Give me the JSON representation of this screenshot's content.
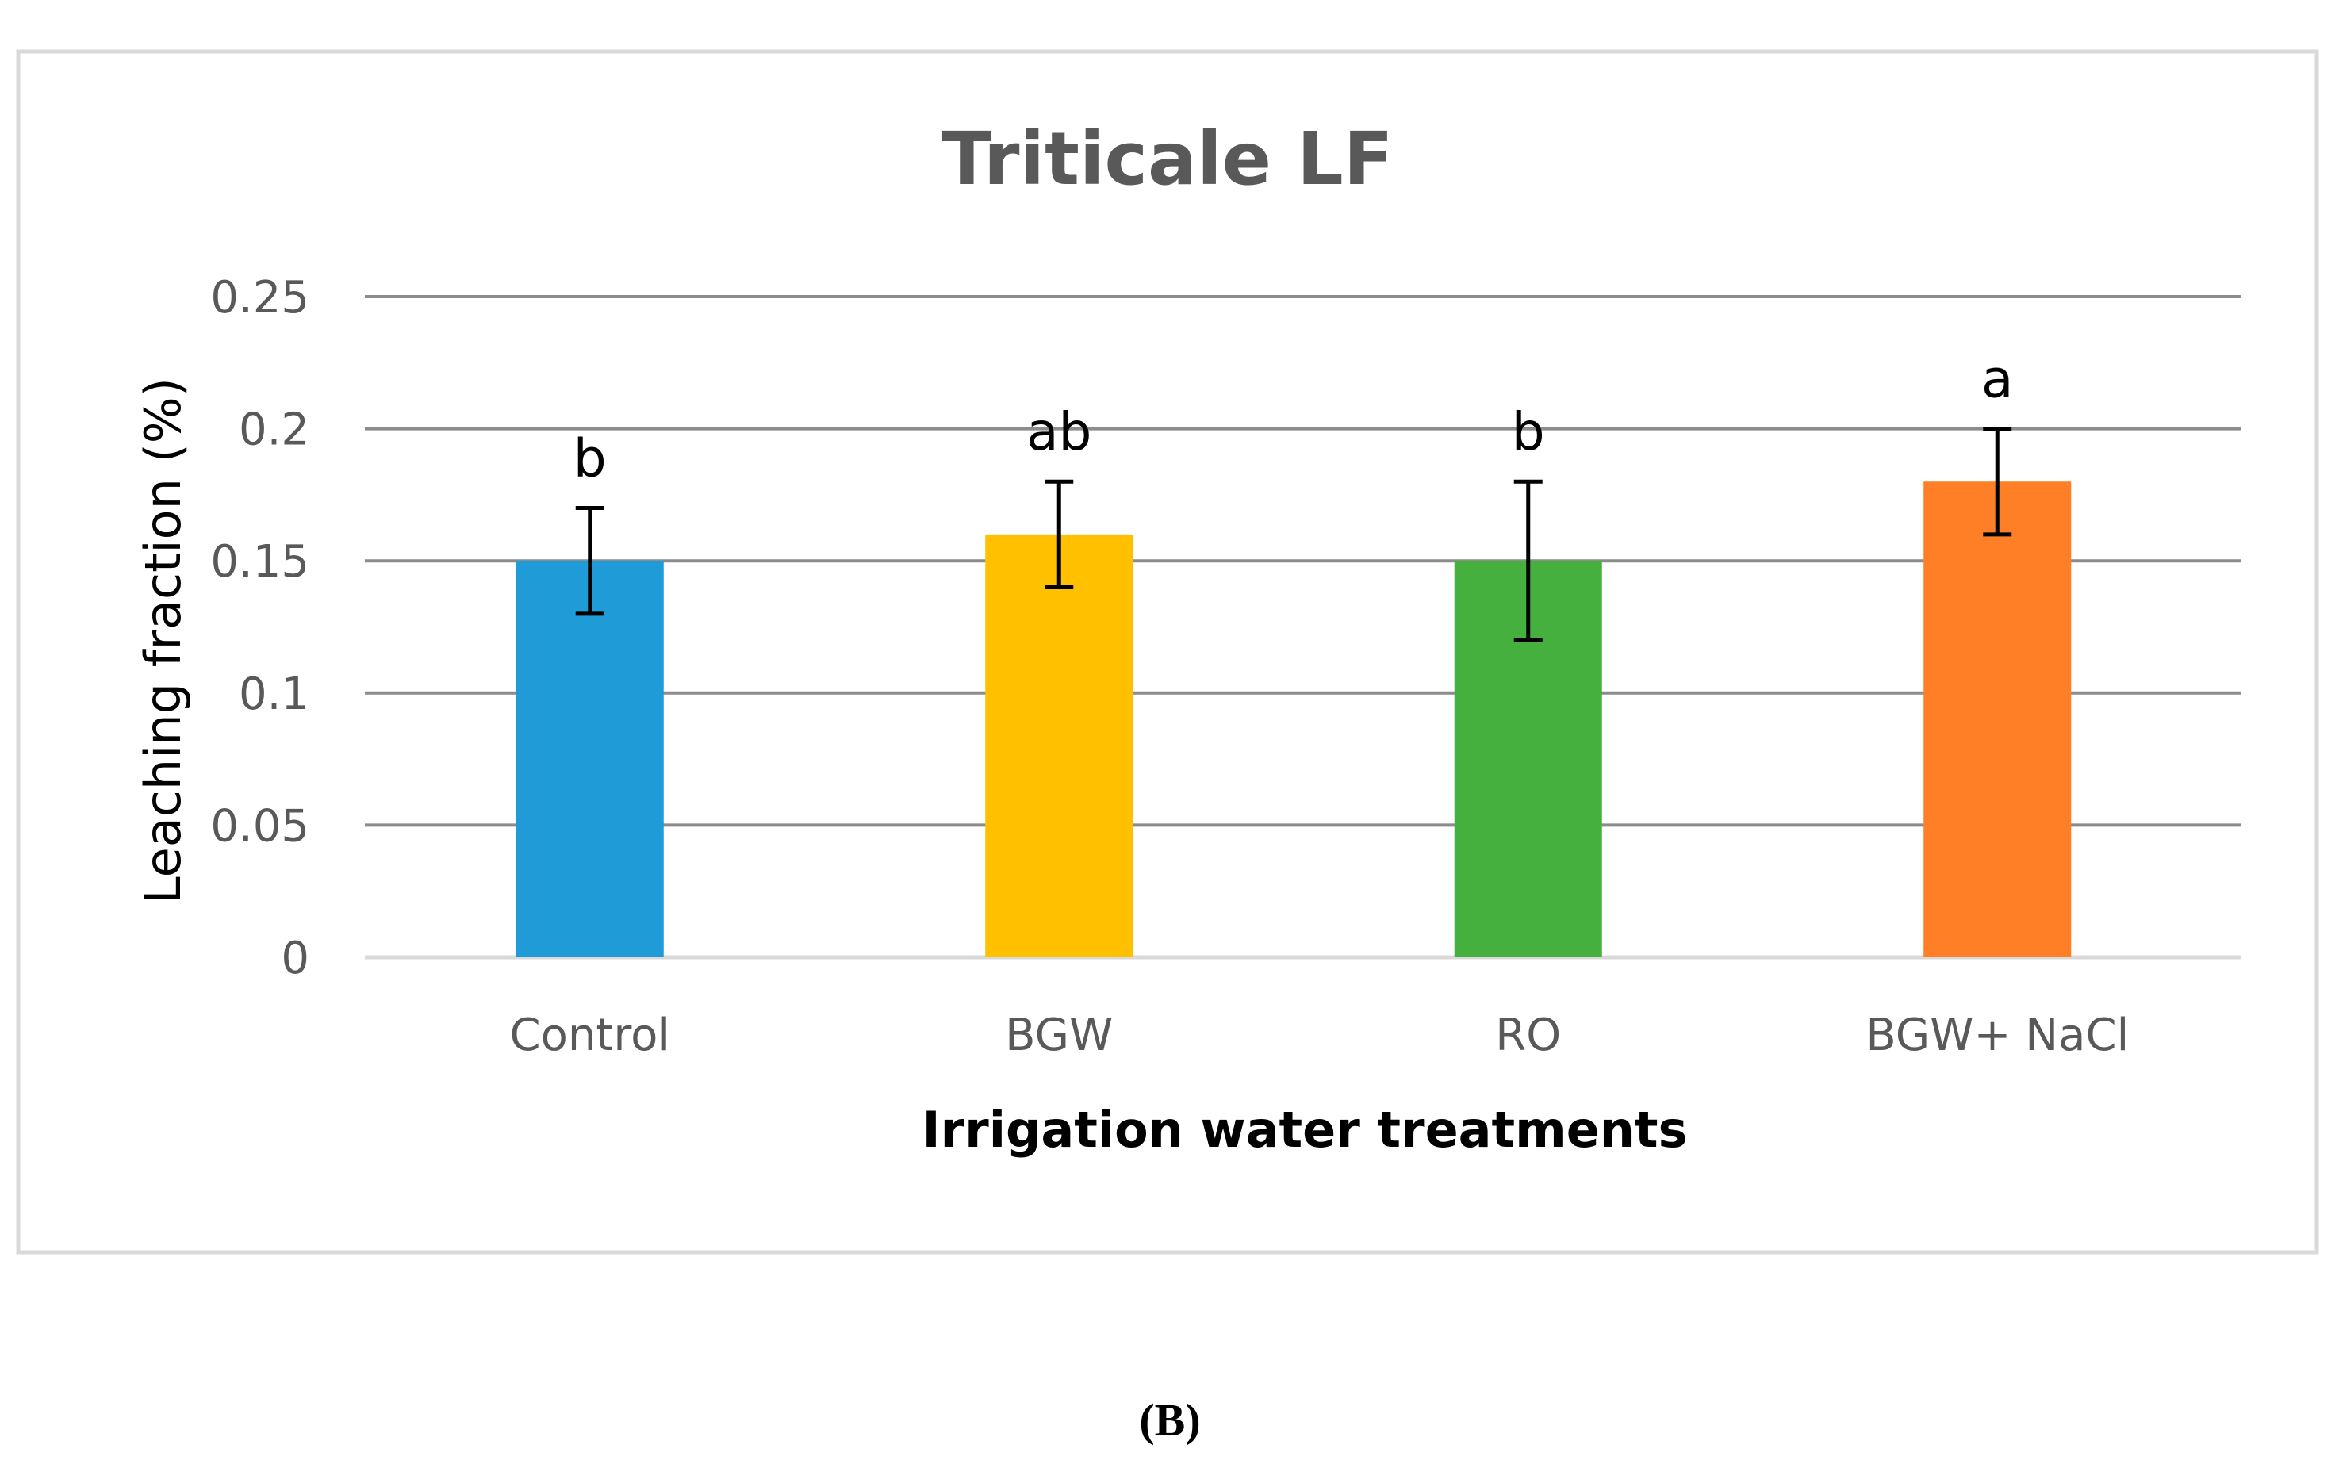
{
  "chart_data": {
    "type": "bar",
    "title": "Triticale LF",
    "xlabel": "Irrigation water treatments",
    "ylabel": "Leaching fraction (%)",
    "categories": [
      "Control",
      "BGW",
      "RO",
      "BGW+ NaCl"
    ],
    "values": [
      0.15,
      0.16,
      0.15,
      0.18
    ],
    "error_low": [
      0.13,
      0.14,
      0.12,
      0.16
    ],
    "error_high": [
      0.17,
      0.18,
      0.18,
      0.2
    ],
    "significance_labels": [
      "b",
      "ab",
      "b",
      "a"
    ],
    "colors": [
      "#1F9BD7",
      "#FFC000",
      "#46B03E",
      "#FF7F27"
    ],
    "ylim": [
      0,
      0.25
    ],
    "yticks": [
      0,
      0.05,
      0.1,
      0.15,
      0.2,
      0.25
    ],
    "ytick_labels": [
      "0",
      "0.05",
      "0.1",
      "0.15",
      "0.2",
      "0.25"
    ],
    "grid": true,
    "legend": "none"
  },
  "caption": "(B)",
  "colors": {
    "gridline": "#8C8C8C",
    "frame": "#D9D9D9",
    "text": "#595959",
    "error_bar": "#000000"
  }
}
